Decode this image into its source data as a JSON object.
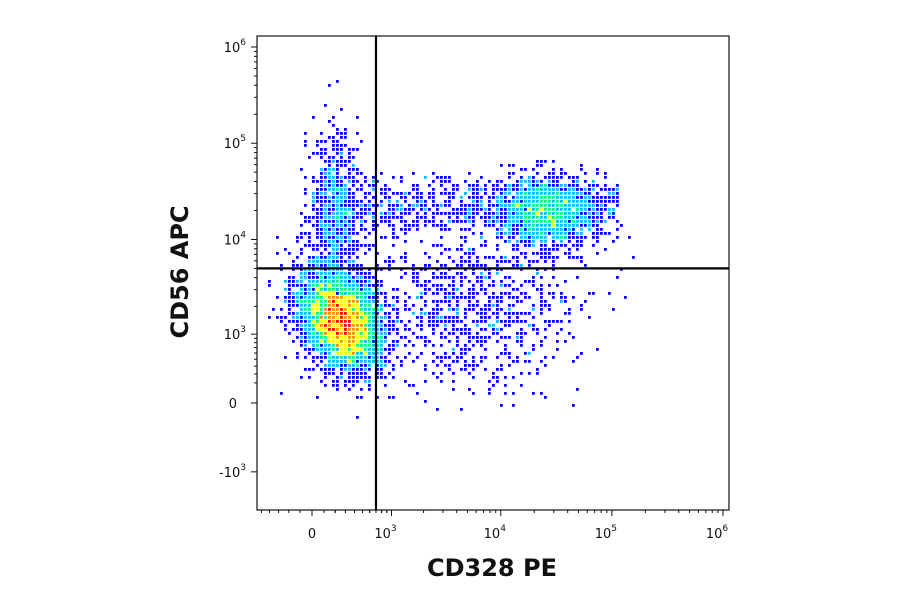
{
  "chart_data": {
    "type": "scatter",
    "subtype": "flow-cytometry-density-dot-plot",
    "xlabel": "CD328 PE",
    "ylabel": "CD56 APC",
    "x_scale": "biexponential",
    "y_scale": "biexponential",
    "x_ticks": [
      {
        "base": "0",
        "exp": "",
        "value": 0
      },
      {
        "base": "10",
        "exp": "3",
        "value": 1000
      },
      {
        "base": "10",
        "exp": "4",
        "value": 10000
      },
      {
        "base": "10",
        "exp": "5",
        "value": 100000
      },
      {
        "base": "10",
        "exp": "6",
        "value": 1000000
      }
    ],
    "y_ticks": [
      {
        "base": "-10",
        "exp": "3",
        "value": -1000
      },
      {
        "base": "0",
        "exp": "",
        "value": 0
      },
      {
        "base": "10",
        "exp": "3",
        "value": 1000
      },
      {
        "base": "10",
        "exp": "4",
        "value": 10000
      },
      {
        "base": "10",
        "exp": "5",
        "value": 100000
      },
      {
        "base": "10",
        "exp": "6",
        "value": 1000000
      }
    ],
    "quadrant_gate": {
      "x": 700,
      "y": 5000
    },
    "populations": [
      {
        "id": "CD56-dim-CD328-neg",
        "center_x": 250,
        "center_y": 1400,
        "relative_density": "highest"
      },
      {
        "id": "CD56-bright-CD328-neg",
        "center_x": 200,
        "center_y": 20000,
        "relative_density": "low"
      },
      {
        "id": "CD56-bright-CD328-pos",
        "center_x": 25000,
        "center_y": 18000,
        "relative_density": "medium"
      },
      {
        "id": "CD56-dim-CD328-pos",
        "center_x": 5000,
        "center_y": 1800,
        "relative_density": "sparse"
      }
    ],
    "density_colormap": [
      "#00008b",
      "#0000ff",
      "#00bfff",
      "#00ff7f",
      "#ffff00",
      "#ff8c00",
      "#ff0000"
    ],
    "grid": false,
    "legend": "none"
  }
}
